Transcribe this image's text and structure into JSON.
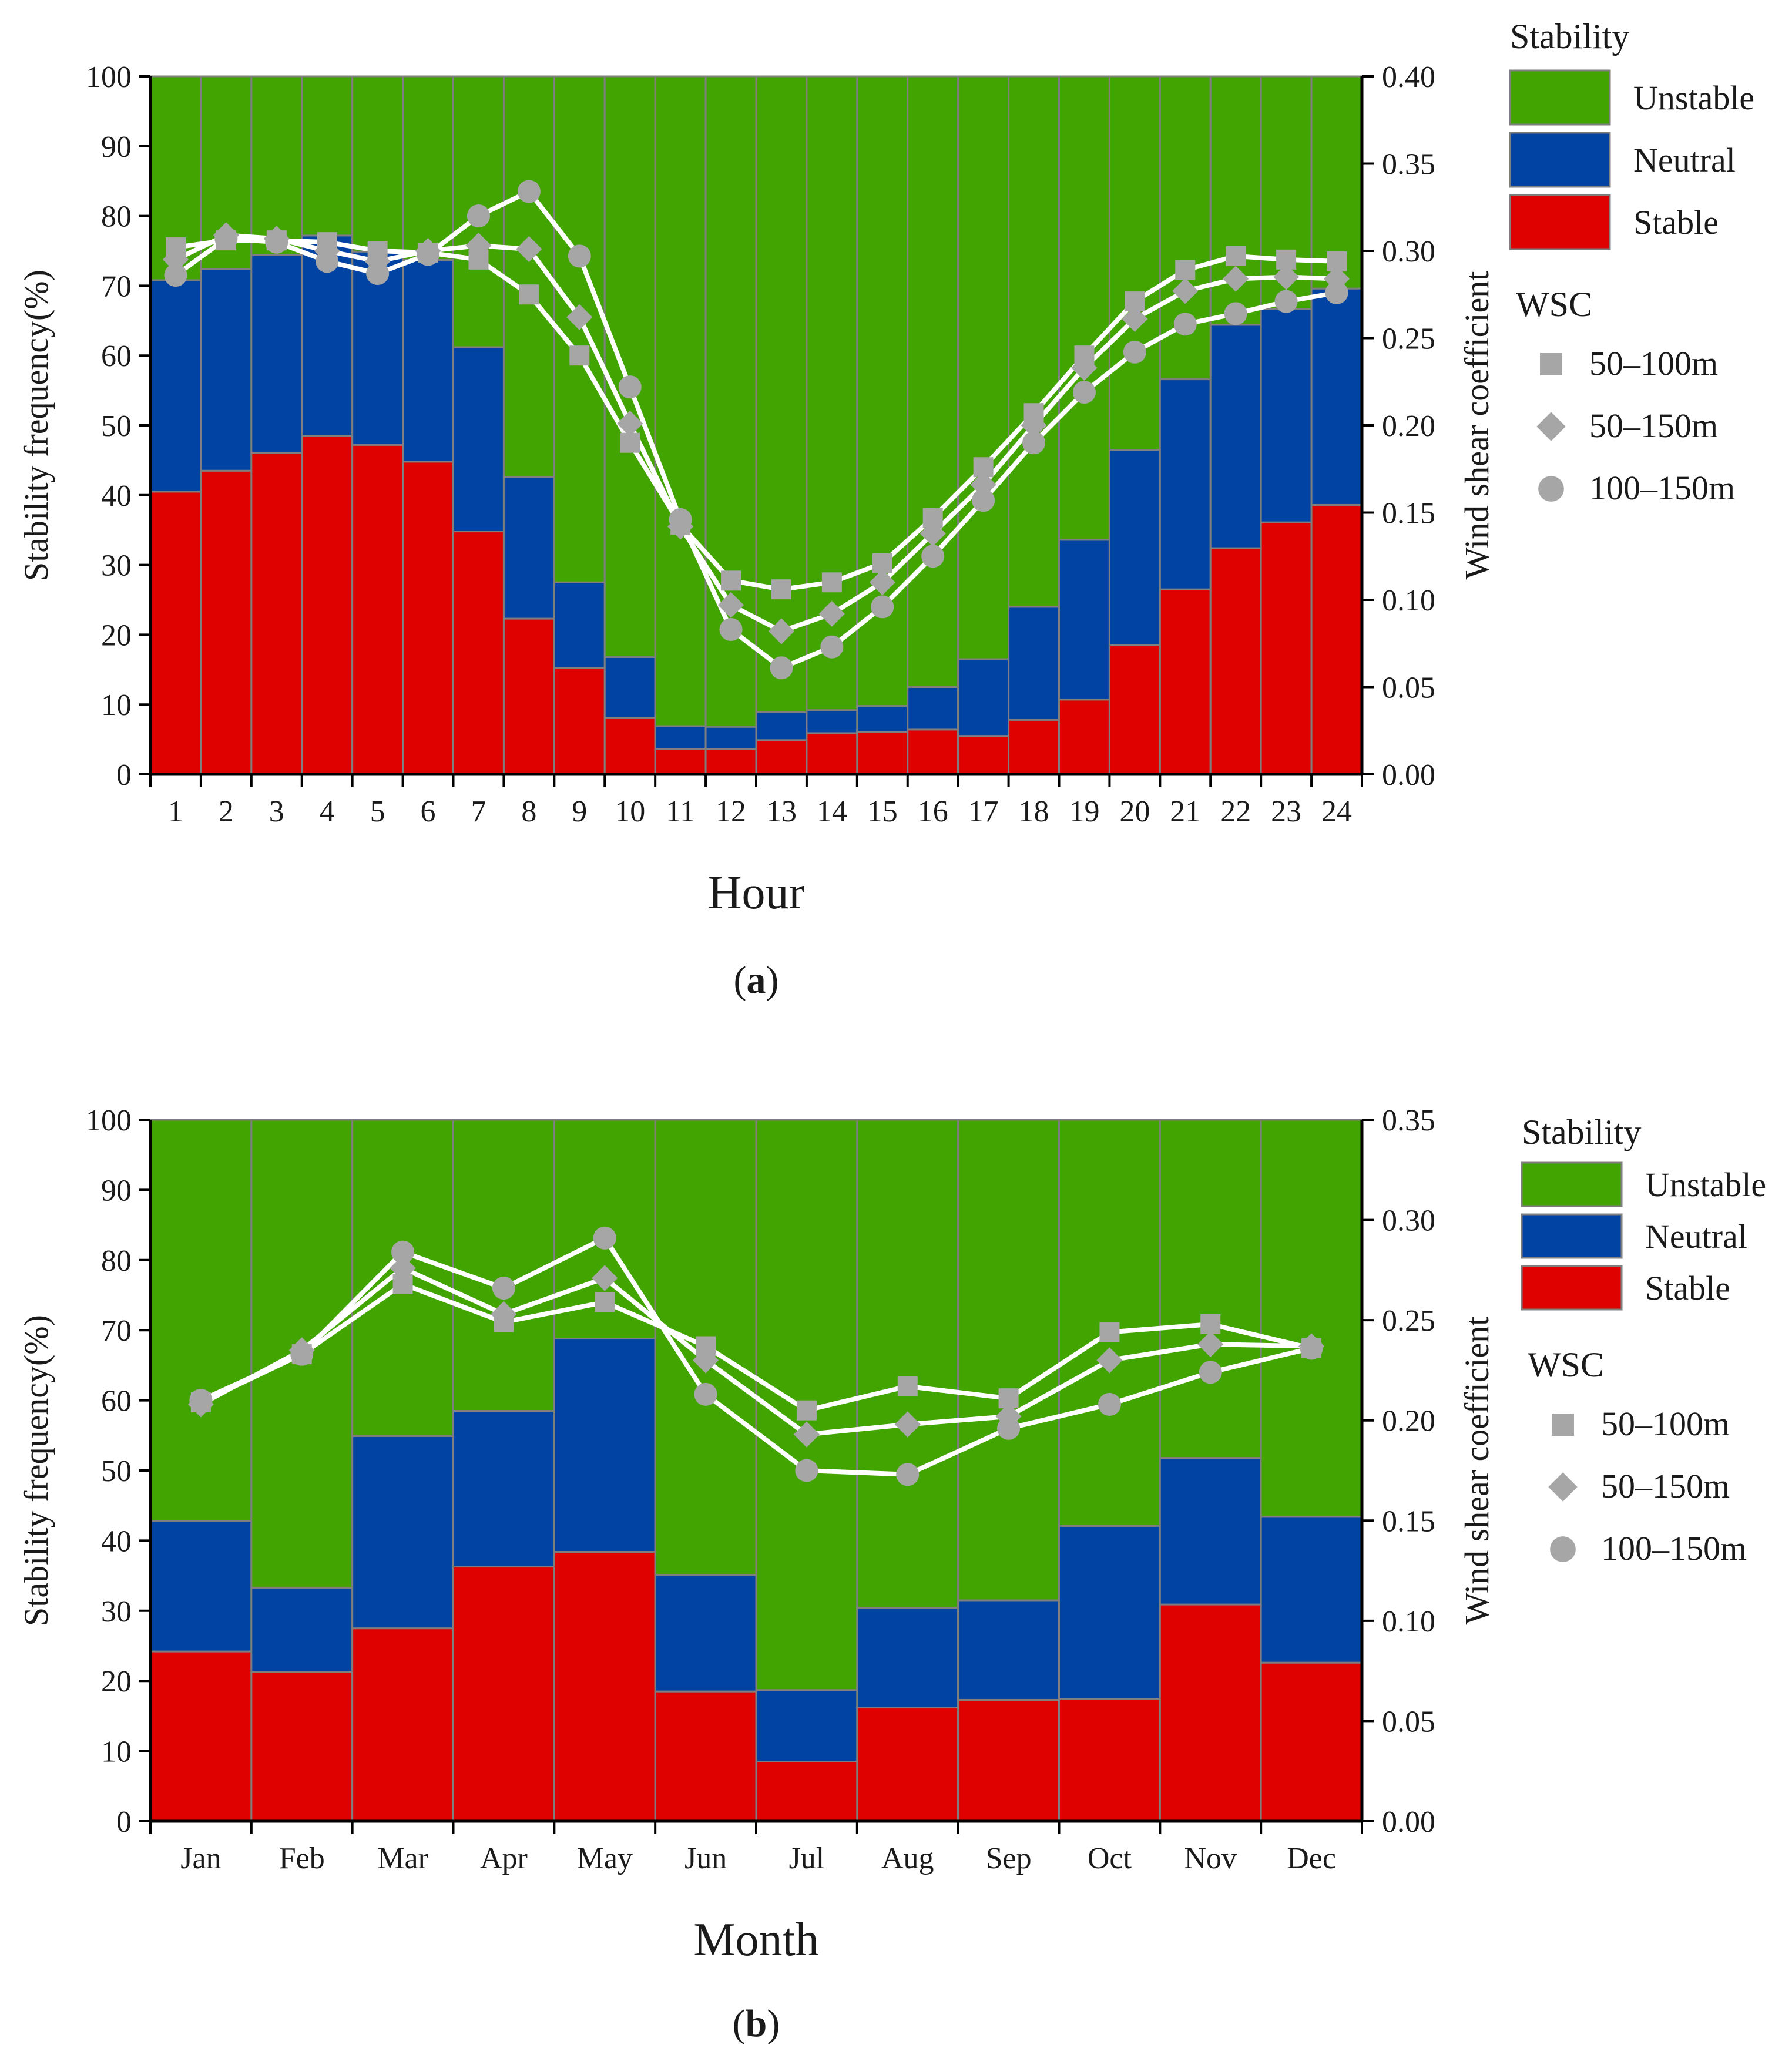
{
  "colors": {
    "unstable": "#42a400",
    "neutral": "#0043a2",
    "stable": "#df0000",
    "marker": "#a6a6a6",
    "line": "#ffffff"
  },
  "chart_data": [
    {
      "type": "bar",
      "panel_label": "a",
      "title": "",
      "xlabel": "Hour",
      "ylabel": "Stability frequency(%)",
      "y2label": "Wind shear coefficient",
      "ylim": [
        0,
        100
      ],
      "y2lim": [
        0,
        0.4
      ],
      "yticks": [
        "0",
        "10",
        "20",
        "30",
        "40",
        "50",
        "60",
        "70",
        "80",
        "90",
        "100"
      ],
      "y2ticks": [
        "0.00",
        "0.05",
        "0.10",
        "0.15",
        "0.20",
        "0.25",
        "0.30",
        "0.35",
        "0.40"
      ],
      "categories": [
        "1",
        "2",
        "3",
        "4",
        "5",
        "6",
        "7",
        "8",
        "9",
        "10",
        "11",
        "12",
        "13",
        "14",
        "15",
        "16",
        "17",
        "18",
        "19",
        "20",
        "21",
        "22",
        "23",
        "24"
      ],
      "stacked": true,
      "series": [
        {
          "name": "Stable",
          "values": [
            40.5,
            43.5,
            46,
            48.5,
            47.2,
            44.8,
            34.8,
            22.3,
            15.2,
            8.1,
            3.6,
            3.6,
            4.9,
            5.9,
            6.1,
            6.4,
            5.5,
            7.8,
            10.7,
            18.5,
            26.5,
            32.4,
            36.1,
            38.6
          ]
        },
        {
          "name": "Neutral",
          "values": [
            30.3,
            28.9,
            28.4,
            28.7,
            27.7,
            28.9,
            26.4,
            20.3,
            12.3,
            8.7,
            3.3,
            3.2,
            4.0,
            3.3,
            3.7,
            6.1,
            11.0,
            16.2,
            22.9,
            28.0,
            30.1,
            32.0,
            30.6,
            31.0
          ]
        },
        {
          "name": "Unstable",
          "values": [
            29.2,
            27.6,
            25.6,
            22.8,
            25.1,
            26.3,
            38.8,
            57.4,
            72.5,
            83.2,
            93.1,
            93.2,
            91.1,
            90.8,
            90.2,
            87.5,
            83.5,
            76.0,
            66.4,
            53.5,
            43.4,
            35.6,
            33.3,
            30.4
          ]
        }
      ],
      "wsc_series": [
        {
          "name": "50–100m",
          "marker": "square",
          "values": [
            0.302,
            0.306,
            0.306,
            0.305,
            0.3,
            0.299,
            0.295,
            0.275,
            0.24,
            0.19,
            0.143,
            0.111,
            0.106,
            0.11,
            0.121,
            0.147,
            0.176,
            0.207,
            0.24,
            0.271,
            0.289,
            0.297,
            0.295,
            0.294
          ]
        },
        {
          "name": "50–150m",
          "marker": "diamond",
          "values": [
            0.295,
            0.309,
            0.307,
            0.3,
            0.294,
            0.3,
            0.303,
            0.301,
            0.262,
            0.201,
            0.142,
            0.097,
            0.082,
            0.092,
            0.11,
            0.138,
            0.166,
            0.2,
            0.233,
            0.261,
            0.277,
            0.284,
            0.285,
            0.284
          ]
        },
        {
          "name": "100–150m",
          "marker": "circle",
          "values": [
            0.286,
            0.307,
            0.305,
            0.294,
            0.287,
            0.298,
            0.32,
            0.334,
            0.297,
            0.222,
            0.146,
            0.083,
            0.061,
            0.073,
            0.096,
            0.125,
            0.157,
            0.19,
            0.219,
            0.242,
            0.258,
            0.264,
            0.271,
            0.276
          ]
        }
      ],
      "legend": {
        "stability_title": "Stability",
        "stability_items": [
          "Unstable",
          "Neutral",
          "Stable"
        ],
        "wsc_title": "WSC",
        "wsc_items": [
          "50–100m",
          "50–150m",
          "100–150m"
        ],
        "position": "right"
      }
    },
    {
      "type": "bar",
      "panel_label": "b",
      "title": "",
      "xlabel": "Month",
      "ylabel": "Stability frequency(%)",
      "y2label": "Wind shear coefficient",
      "ylim": [
        0,
        100
      ],
      "y2lim": [
        0,
        0.35
      ],
      "yticks": [
        "0",
        "10",
        "20",
        "30",
        "40",
        "50",
        "60",
        "70",
        "80",
        "90",
        "100"
      ],
      "y2ticks": [
        "0.00",
        "0.05",
        "0.10",
        "0.15",
        "0.20",
        "0.25",
        "0.30",
        "0.35"
      ],
      "categories": [
        "Jan",
        "Feb",
        "Mar",
        "Apr",
        "May",
        "Jun",
        "Jul",
        "Aug",
        "Sep",
        "Oct",
        "Nov",
        "Dec"
      ],
      "stacked": true,
      "series": [
        {
          "name": "Stable",
          "values": [
            24.2,
            21.3,
            27.5,
            36.3,
            38.4,
            18.5,
            8.5,
            16.2,
            17.3,
            17.4,
            30.9,
            22.6
          ]
        },
        {
          "name": "Neutral",
          "values": [
            18.6,
            12.0,
            27.4,
            22.2,
            30.4,
            16.6,
            10.2,
            14.2,
            14.2,
            24.7,
            20.9,
            20.8
          ]
        },
        {
          "name": "Unstable",
          "values": [
            57.2,
            66.7,
            45.1,
            41.5,
            31.2,
            64.9,
            81.3,
            69.6,
            68.5,
            57.9,
            48.2,
            56.6
          ]
        }
      ],
      "wsc_series": [
        {
          "name": "50–100m",
          "marker": "square",
          "values": [
            0.209,
            0.233,
            0.268,
            0.249,
            0.259,
            0.237,
            0.205,
            0.217,
            0.211,
            0.244,
            0.248,
            0.236
          ]
        },
        {
          "name": "50–150m",
          "marker": "diamond",
          "values": [
            0.208,
            0.235,
            0.276,
            0.253,
            0.271,
            0.23,
            0.193,
            0.198,
            0.202,
            0.23,
            0.238,
            0.237
          ]
        },
        {
          "name": "100–150m",
          "marker": "circle",
          "values": [
            0.21,
            0.233,
            0.284,
            0.266,
            0.291,
            0.213,
            0.175,
            0.173,
            0.196,
            0.208,
            0.224,
            0.236
          ]
        }
      ],
      "legend": {
        "stability_title": "Stability",
        "stability_items": [
          "Unstable",
          "Neutral",
          "Stable"
        ],
        "wsc_title": "WSC",
        "wsc_items": [
          "50–100m",
          "50–150m",
          "100–150m"
        ],
        "position": "right"
      }
    }
  ]
}
